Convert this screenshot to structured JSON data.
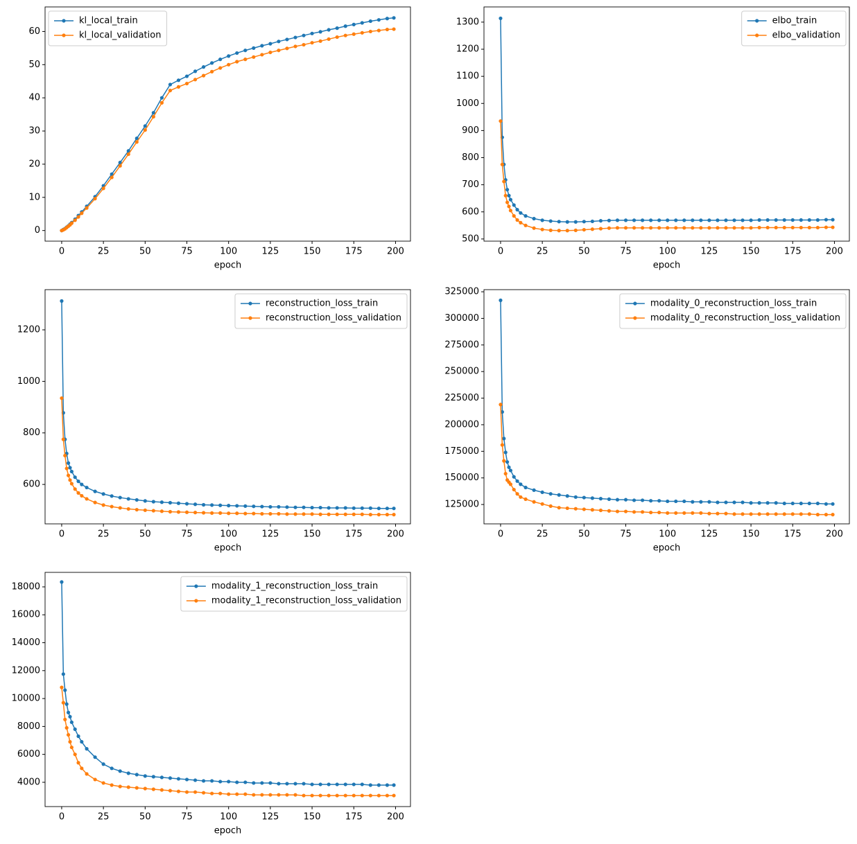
{
  "chart_data": [
    {
      "type": "line",
      "xlabel": "epoch",
      "legend": "upper left",
      "xlim": [
        -9.95,
        208.95
      ],
      "ylim": [
        -3.2,
        67.4
      ],
      "xticks": [
        0,
        25,
        50,
        75,
        100,
        125,
        150,
        175,
        200
      ],
      "yticks": [
        0,
        10,
        20,
        30,
        40,
        50,
        60
      ],
      "x": [
        0,
        1,
        2,
        3,
        4,
        5,
        6,
        8,
        10,
        12,
        15,
        20,
        25,
        30,
        35,
        40,
        45,
        50,
        55,
        60,
        65,
        70,
        75,
        80,
        85,
        90,
        95,
        100,
        105,
        110,
        115,
        120,
        125,
        130,
        135,
        140,
        145,
        150,
        155,
        160,
        165,
        170,
        175,
        180,
        185,
        190,
        195,
        199
      ],
      "series": [
        {
          "name": "kl_local_train",
          "color": "#1f77b4",
          "values": [
            0,
            0.3,
            0.6,
            1.0,
            1.4,
            1.9,
            2.4,
            3.4,
            4.5,
            5.6,
            7.3,
            10.2,
            13.5,
            17,
            20.5,
            24,
            27.8,
            31.5,
            35.5,
            40,
            44,
            45.3,
            46.5,
            48,
            49.3,
            50.5,
            51.6,
            52.6,
            53.5,
            54.3,
            55,
            55.7,
            56.3,
            57,
            57.6,
            58.2,
            58.8,
            59.4,
            59.9,
            60.5,
            61,
            61.6,
            62.1,
            62.6,
            63.1,
            63.5,
            63.9,
            64.1
          ]
        },
        {
          "name": "kl_local_validation",
          "color": "#ff7f0e",
          "values": [
            0,
            0.2,
            0.5,
            0.9,
            1.3,
            1.7,
            2.2,
            3.1,
            4.1,
            5.2,
            6.8,
            9.6,
            12.7,
            16,
            19.5,
            23,
            26.7,
            30.3,
            34.3,
            38.5,
            42.2,
            43.3,
            44.3,
            45.5,
            46.7,
            47.9,
            49,
            50,
            50.9,
            51.6,
            52.3,
            53,
            53.7,
            54.3,
            54.9,
            55.5,
            56,
            56.6,
            57.1,
            57.7,
            58.3,
            58.8,
            59.2,
            59.6,
            60,
            60.3,
            60.6,
            60.7
          ]
        }
      ]
    },
    {
      "type": "line",
      "xlabel": "epoch",
      "legend": "upper right",
      "xlim": [
        -9.95,
        208.95
      ],
      "ylim": [
        492,
        1356
      ],
      "xticks": [
        0,
        25,
        50,
        75,
        100,
        125,
        150,
        175,
        200
      ],
      "yticks": [
        500,
        600,
        700,
        800,
        900,
        1000,
        1100,
        1200,
        1300
      ],
      "x": [
        0,
        1,
        2,
        3,
        4,
        5,
        6,
        8,
        10,
        12,
        15,
        20,
        25,
        30,
        35,
        40,
        45,
        50,
        55,
        60,
        65,
        70,
        75,
        80,
        85,
        90,
        95,
        100,
        105,
        110,
        115,
        120,
        125,
        130,
        135,
        140,
        145,
        150,
        155,
        160,
        165,
        170,
        175,
        180,
        185,
        190,
        195,
        199
      ],
      "series": [
        {
          "name": "elbo_train",
          "color": "#1f77b4",
          "values": [
            1314,
            875,
            775,
            718,
            682,
            660,
            645,
            625,
            608,
            596,
            585,
            575,
            569,
            566,
            564,
            563,
            563,
            564,
            565,
            567,
            568,
            569,
            569,
            569,
            569,
            569,
            569,
            569,
            569,
            569,
            569,
            569,
            569,
            569,
            569,
            569,
            569,
            569,
            570,
            570,
            570,
            570,
            570,
            570,
            570,
            570,
            571,
            571
          ]
        },
        {
          "name": "elbo_validation",
          "color": "#ff7f0e",
          "values": [
            935,
            775,
            712,
            660,
            635,
            620,
            605,
            585,
            570,
            560,
            550,
            540,
            535,
            532,
            531,
            531,
            532,
            534,
            536,
            538,
            540,
            541,
            541,
            541,
            541,
            541,
            541,
            541,
            541,
            541,
            541,
            541,
            541,
            541,
            541,
            541,
            541,
            541,
            542,
            542,
            542,
            542,
            542,
            542,
            542,
            542,
            543,
            543
          ]
        }
      ]
    },
    {
      "type": "line",
      "xlabel": "epoch",
      "legend": "upper right",
      "xlim": [
        -9.95,
        208.95
      ],
      "ylim": [
        447,
        1356
      ],
      "xticks": [
        0,
        25,
        50,
        75,
        100,
        125,
        150,
        175,
        200
      ],
      "yticks": [
        600,
        800,
        1000,
        1200
      ],
      "x": [
        0,
        1,
        2,
        3,
        4,
        5,
        6,
        8,
        10,
        12,
        15,
        20,
        25,
        30,
        35,
        40,
        45,
        50,
        55,
        60,
        65,
        70,
        75,
        80,
        85,
        90,
        95,
        100,
        105,
        110,
        115,
        120,
        125,
        130,
        135,
        140,
        145,
        150,
        155,
        160,
        165,
        170,
        175,
        180,
        185,
        190,
        195,
        199
      ],
      "series": [
        {
          "name": "reconstruction_loss_train",
          "color": "#1f77b4",
          "values": [
            1312,
            878,
            775,
            720,
            683,
            665,
            650,
            628,
            612,
            600,
            588,
            573,
            563,
            555,
            549,
            544,
            540,
            536,
            533,
            531,
            529,
            527,
            525,
            523,
            521,
            520,
            519,
            518,
            517,
            516,
            515,
            514,
            513,
            513,
            512,
            511,
            511,
            510,
            510,
            509,
            509,
            509,
            508,
            508,
            508,
            507,
            507,
            507
          ]
        },
        {
          "name": "reconstruction_loss_validation",
          "color": "#ff7f0e",
          "values": [
            935,
            775,
            712,
            662,
            635,
            617,
            603,
            582,
            567,
            556,
            544,
            530,
            520,
            514,
            509,
            505,
            502,
            500,
            498,
            496,
            494,
            493,
            492,
            491,
            490,
            489,
            489,
            488,
            488,
            487,
            487,
            486,
            486,
            486,
            485,
            485,
            485,
            485,
            484,
            484,
            484,
            484,
            484,
            484,
            483,
            483,
            483,
            483
          ]
        }
      ]
    },
    {
      "type": "line",
      "xlabel": "epoch",
      "legend": "upper right",
      "xlim": [
        -9.95,
        208.95
      ],
      "ylim": [
        106800,
        327000
      ],
      "xticks": [
        0,
        25,
        50,
        75,
        100,
        125,
        150,
        175,
        200
      ],
      "yticks": [
        125000,
        150000,
        175000,
        200000,
        225000,
        250000,
        275000,
        300000,
        325000
      ],
      "x": [
        0,
        1,
        2,
        3,
        4,
        5,
        6,
        8,
        10,
        12,
        15,
        20,
        25,
        30,
        35,
        40,
        45,
        50,
        55,
        60,
        65,
        70,
        75,
        80,
        85,
        90,
        95,
        100,
        105,
        110,
        115,
        120,
        125,
        130,
        135,
        140,
        145,
        150,
        155,
        160,
        165,
        170,
        175,
        180,
        185,
        190,
        195,
        199
      ],
      "series": [
        {
          "name": "modality_0_reconstruction_loss_train",
          "color": "#1f77b4",
          "values": [
            317000,
            212000,
            187000,
            174000,
            165000,
            160000,
            157000,
            151000,
            147000,
            144000,
            141000,
            138500,
            136500,
            135000,
            134000,
            133000,
            132000,
            131500,
            131000,
            130500,
            130000,
            129500,
            129500,
            129000,
            129000,
            128500,
            128500,
            128000,
            128000,
            128000,
            127500,
            127500,
            127500,
            127000,
            127000,
            127000,
            127000,
            126500,
            126500,
            126500,
            126500,
            126000,
            126000,
            126000,
            126000,
            126000,
            125500,
            125500
          ]
        },
        {
          "name": "modality_0_reconstruction_loss_validation",
          "color": "#ff7f0e",
          "values": [
            219000,
            181000,
            166000,
            154000,
            148000,
            146000,
            144000,
            139000,
            135000,
            132000,
            130000,
            127500,
            125500,
            123500,
            122000,
            121500,
            121000,
            120500,
            120000,
            119500,
            119000,
            118500,
            118500,
            118000,
            118000,
            117500,
            117500,
            117000,
            117000,
            117000,
            117000,
            117000,
            116500,
            116500,
            116500,
            116000,
            116000,
            116000,
            116000,
            116000,
            116000,
            116000,
            116000,
            116000,
            116000,
            115500,
            115500,
            115500
          ]
        }
      ]
    },
    {
      "type": "line",
      "xlabel": "epoch",
      "legend": "upper right",
      "xlim": [
        -9.95,
        208.95
      ],
      "ylim": [
        2260,
        19040
      ],
      "xticks": [
        0,
        25,
        50,
        75,
        100,
        125,
        150,
        175,
        200
      ],
      "yticks": [
        4000,
        6000,
        8000,
        10000,
        12000,
        14000,
        16000,
        18000
      ],
      "x": [
        0,
        1,
        2,
        3,
        4,
        5,
        6,
        8,
        10,
        12,
        15,
        20,
        25,
        30,
        35,
        40,
        45,
        50,
        55,
        60,
        65,
        70,
        75,
        80,
        85,
        90,
        95,
        100,
        105,
        110,
        115,
        120,
        125,
        130,
        135,
        140,
        145,
        150,
        155,
        160,
        165,
        170,
        175,
        180,
        185,
        190,
        195,
        199
      ],
      "series": [
        {
          "name": "modality_1_reconstruction_loss_train",
          "color": "#1f77b4",
          "values": [
            18350,
            11750,
            10600,
            9600,
            9000,
            8700,
            8300,
            7800,
            7300,
            6900,
            6400,
            5800,
            5300,
            5000,
            4800,
            4650,
            4550,
            4450,
            4400,
            4350,
            4300,
            4250,
            4200,
            4150,
            4100,
            4100,
            4050,
            4050,
            4000,
            4000,
            3950,
            3950,
            3950,
            3900,
            3900,
            3900,
            3900,
            3850,
            3850,
            3850,
            3850,
            3850,
            3850,
            3850,
            3800,
            3800,
            3800,
            3800
          ]
        },
        {
          "name": "modality_1_reconstruction_loss_validation",
          "color": "#ff7f0e",
          "values": [
            10800,
            9700,
            8500,
            7900,
            7400,
            6900,
            6500,
            6000,
            5400,
            5000,
            4600,
            4200,
            3950,
            3800,
            3700,
            3650,
            3600,
            3550,
            3500,
            3450,
            3400,
            3350,
            3300,
            3300,
            3250,
            3200,
            3200,
            3150,
            3150,
            3150,
            3100,
            3100,
            3100,
            3100,
            3100,
            3100,
            3050,
            3050,
            3050,
            3050,
            3050,
            3050,
            3050,
            3050,
            3050,
            3050,
            3050,
            3050
          ]
        }
      ]
    }
  ]
}
